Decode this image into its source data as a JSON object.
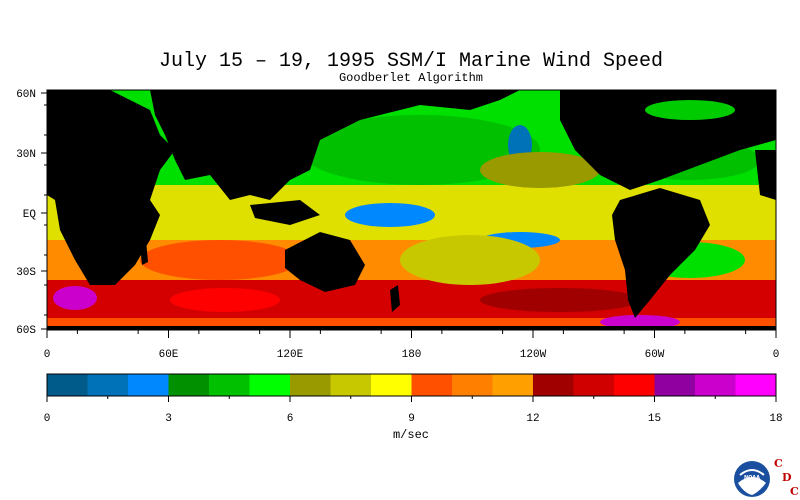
{
  "title": "July 15 – 19, 1995 SSM/I Marine Wind Speed",
  "subtitle": "Goodberlet Algorithm",
  "map": {
    "lat_labels": [
      "60N",
      "30N",
      "EQ",
      "30S",
      "60S"
    ],
    "lon_labels": [
      "0",
      "60E",
      "120E",
      "180",
      "120W",
      "60W",
      "0"
    ]
  },
  "colorbar": {
    "colors": [
      "#005a8a",
      "#0072b8",
      "#0088ff",
      "#009000",
      "#00c000",
      "#00ff00",
      "#999900",
      "#c8c800",
      "#ffff00",
      "#ff5000",
      "#ff8000",
      "#ffa000",
      "#a00000",
      "#d00000",
      "#ff0000",
      "#9000a0",
      "#cc00cc",
      "#ff00ff"
    ],
    "tick_labels": [
      "0",
      "3",
      "6",
      "9",
      "12",
      "15",
      "18"
    ],
    "unit": "m/sec",
    "range": [
      0,
      18
    ]
  },
  "logo": {
    "org_letters": [
      "C",
      "D",
      "C"
    ],
    "emblem": "NOAA"
  },
  "legend_colors": {
    "land": "#000000"
  }
}
